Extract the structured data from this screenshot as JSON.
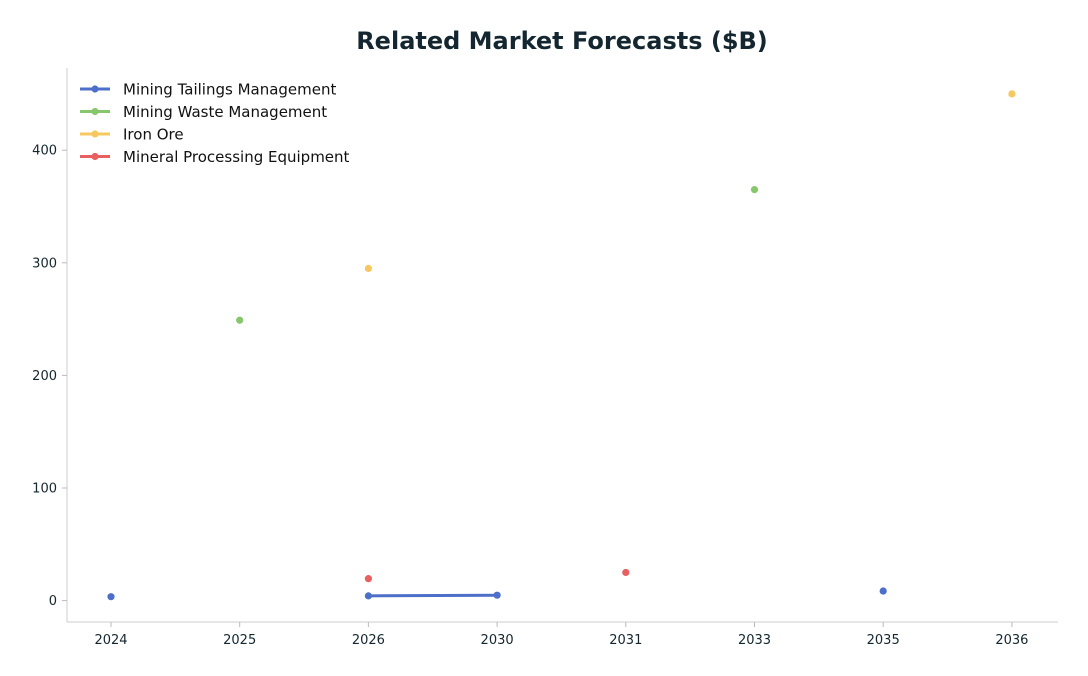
{
  "chart_data": {
    "type": "line",
    "title": "Related Market Forecasts ($B)",
    "xlabel": "",
    "ylabel": "",
    "categories": [
      "2024",
      "2025",
      "2026",
      "2030",
      "2031",
      "2033",
      "2035",
      "2036"
    ],
    "ylim": [
      -19,
      473
    ],
    "yticks": [
      0,
      100,
      200,
      300,
      400
    ],
    "grid": false,
    "legend_position": "top-left",
    "series": [
      {
        "name": "Mining Tailings Management",
        "color": "#4e6fc9",
        "points": [
          {
            "x": "2024",
            "y": 3.5
          },
          {
            "x": "2026",
            "y": 4.2
          },
          {
            "x": "2030",
            "y": 4.8
          },
          {
            "x": "2035",
            "y": 8.5
          }
        ],
        "connected": [
          [
            1,
            2
          ]
        ]
      },
      {
        "name": "Mining Waste Management",
        "color": "#88c66e",
        "points": [
          {
            "x": "2025",
            "y": 249
          },
          {
            "x": "2033",
            "y": 365
          }
        ],
        "connected": []
      },
      {
        "name": "Iron Ore",
        "color": "#f6c85f",
        "points": [
          {
            "x": "2026",
            "y": 295
          },
          {
            "x": "2036",
            "y": 450
          }
        ],
        "connected": []
      },
      {
        "name": "Mineral Processing Equipment",
        "color": "#e8605f",
        "points": [
          {
            "x": "2026",
            "y": 19.5
          },
          {
            "x": "2031",
            "y": 25
          }
        ],
        "connected": []
      }
    ]
  }
}
